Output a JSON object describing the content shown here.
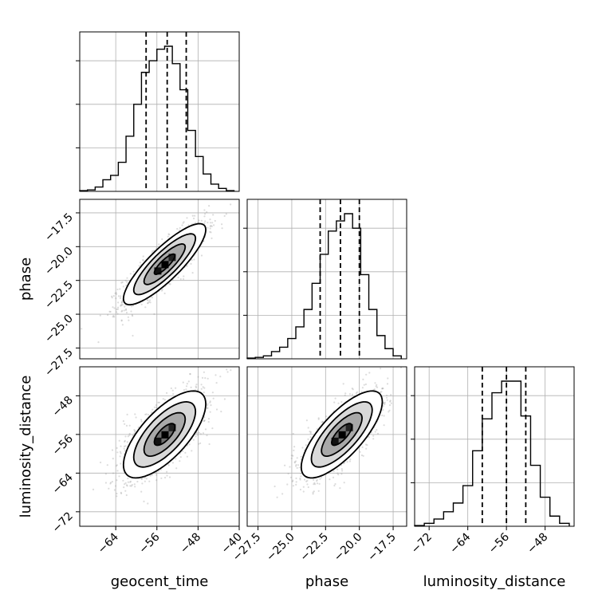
{
  "chart_data": {
    "type": "corner",
    "parameters": [
      "geocent_time",
      "phase",
      "luminosity_distance"
    ],
    "axes": {
      "geocent_time": {
        "range": [
          -71,
          -40
        ],
        "ticks": [
          -64,
          -56,
          -48,
          -40
        ],
        "tick_labels": [
          "−64",
          "−56",
          "−48",
          "−40"
        ]
      },
      "phase": {
        "range": [
          -28.3,
          -16.5
        ],
        "ticks": [
          -27.5,
          -25.0,
          -22.5,
          -20.0,
          -17.5
        ],
        "tick_labels": [
          "−27.5",
          "−25.0",
          "−22.5",
          "−20.0",
          "−17.5"
        ]
      },
      "luminosity_distance": {
        "range": [
          -75,
          -42
        ],
        "ticks": [
          -72,
          -64,
          -56,
          -48
        ],
        "tick_labels": [
          "−72",
          "−64",
          "−56",
          "−48"
        ]
      }
    },
    "marginals": [
      {
        "parameter": "geocent_time",
        "quantiles": [
          -58.1,
          -54.0,
          -50.3
        ],
        "bins": [
          -71,
          -69.5,
          -68,
          -66.5,
          -65,
          -63.5,
          -62,
          -60.5,
          -59,
          -57.5,
          -56,
          -54.5,
          -53,
          -51.5,
          -50,
          -48.5,
          -47,
          -45.5,
          -44,
          -42.5,
          -41
        ],
        "counts": [
          0.005,
          0.01,
          0.03,
          0.08,
          0.11,
          0.2,
          0.38,
          0.6,
          0.82,
          0.9,
          0.98,
          1.0,
          0.88,
          0.7,
          0.42,
          0.24,
          0.12,
          0.05,
          0.02,
          0.005
        ]
      },
      {
        "parameter": "phase",
        "quantiles": [
          -22.9,
          -21.4,
          -20.0
        ],
        "bins": [
          -28.3,
          -27.7,
          -27.1,
          -26.5,
          -25.9,
          -25.3,
          -24.7,
          -24.1,
          -23.5,
          -22.9,
          -22.3,
          -21.7,
          -21.1,
          -20.5,
          -19.9,
          -19.3,
          -18.7,
          -18.1,
          -17.5,
          -16.9
        ],
        "counts": [
          0.005,
          0.01,
          0.02,
          0.05,
          0.08,
          0.14,
          0.22,
          0.34,
          0.52,
          0.72,
          0.88,
          0.95,
          1.0,
          0.9,
          0.58,
          0.34,
          0.16,
          0.07,
          0.02
        ]
      },
      {
        "parameter": "luminosity_distance",
        "quantiles": [
          -61.0,
          -56.0,
          -52.0
        ],
        "bins": [
          -75,
          -73,
          -71,
          -69,
          -67,
          -65,
          -63,
          -61,
          -59,
          -57,
          -55,
          -53,
          -51,
          -49,
          -47,
          -45,
          -43
        ],
        "counts": [
          0.005,
          0.02,
          0.05,
          0.1,
          0.16,
          0.28,
          0.52,
          0.74,
          0.92,
          1.0,
          1.0,
          0.76,
          0.42,
          0.2,
          0.07,
          0.02
        ]
      }
    ],
    "joint": [
      {
        "x": "geocent_time",
        "y": "phase",
        "center": [
          -54.5,
          -21.3
        ],
        "sigma": [
          4.0,
          1.5
        ],
        "correlation": 0.85
      },
      {
        "x": "geocent_time",
        "y": "luminosity_distance",
        "center": [
          -54.5,
          -56.0
        ],
        "sigma": [
          4.0,
          4.5
        ],
        "correlation": 0.7
      },
      {
        "x": "phase",
        "y": "luminosity_distance",
        "center": [
          -21.3,
          -56.0
        ],
        "sigma": [
          1.5,
          4.5
        ],
        "correlation": 0.75
      }
    ],
    "contour_levels_sigma": [
      0.5,
      1.0,
      1.5,
      2.0
    ],
    "grid": true,
    "color": "#000000",
    "sample_color": "#9a9a9a"
  }
}
